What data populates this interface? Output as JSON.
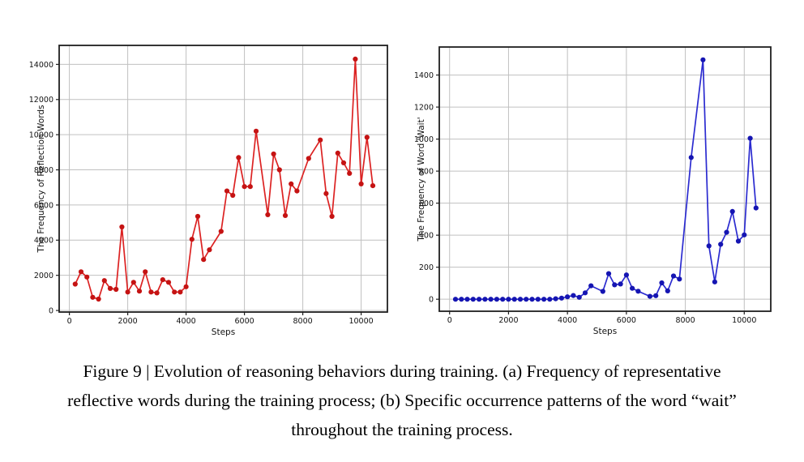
{
  "page": {
    "background": "#ffffff"
  },
  "caption": {
    "lines": [
      "Figure 9 | Evolution of reasoning behaviors during training. (a) Frequency of representative",
      "reflective words during the training process; (b) Specific occurrence patterns of the word “wait”",
      "throughout the training process."
    ]
  },
  "chart_data": [
    {
      "id": "reflection-words",
      "type": "line",
      "title": "",
      "xlabel": "Steps",
      "ylabel": "The Frequency of Reflection Words",
      "line_color": "#dc2222",
      "marker_color": "#c51313",
      "grid": true,
      "legend": null,
      "xlim": [
        -350,
        10900
      ],
      "ylim": [
        -90,
        15080
      ],
      "xticks": [
        0,
        2000,
        4000,
        6000,
        8000,
        10000
      ],
      "yticks": [
        0,
        2000,
        4000,
        6000,
        8000,
        10000,
        12000,
        14000
      ],
      "x": [
        200,
        400,
        600,
        800,
        1000,
        1200,
        1400,
        1600,
        1800,
        2000,
        2200,
        2400,
        2600,
        2800,
        3000,
        3200,
        3400,
        3600,
        3800,
        4000,
        4200,
        4400,
        4600,
        4800,
        5200,
        5400,
        5600,
        5800,
        6000,
        6200,
        6400,
        6800,
        7000,
        7200,
        7400,
        7600,
        7800,
        8200,
        8600,
        8800,
        9000,
        9200,
        9400,
        9600,
        9800,
        10000,
        10200,
        10400
      ],
      "values": [
        1500,
        2200,
        1900,
        750,
        650,
        1700,
        1250,
        1200,
        4750,
        1050,
        1600,
        1100,
        2200,
        1050,
        1000,
        1750,
        1600,
        1050,
        1050,
        1350,
        4050,
        5350,
        2900,
        3450,
        4500,
        6800,
        6550,
        8700,
        7050,
        7050,
        10200,
        5450,
        8900,
        8000,
        5400,
        7200,
        6800,
        8650,
        9700,
        6650,
        5350,
        8950,
        8400,
        7800,
        14300,
        7200,
        9850,
        7100
      ]
    },
    {
      "id": "word-wait",
      "type": "line",
      "title": "",
      "xlabel": "Steps",
      "ylabel": "The Frequency of Word 'Wait'",
      "line_color": "#2b2bd0",
      "marker_color": "#1515b2",
      "grid": true,
      "legend": null,
      "xlim": [
        -350,
        10900
      ],
      "ylim": [
        -75,
        1575
      ],
      "xticks": [
        0,
        2000,
        4000,
        6000,
        8000,
        10000
      ],
      "yticks": [
        0,
        200,
        400,
        600,
        800,
        1000,
        1200,
        1400
      ],
      "x": [
        200,
        400,
        600,
        800,
        1000,
        1200,
        1400,
        1600,
        1800,
        2000,
        2200,
        2400,
        2600,
        2800,
        3000,
        3200,
        3400,
        3600,
        3800,
        4000,
        4200,
        4400,
        4600,
        4800,
        5200,
        5400,
        5600,
        5800,
        6000,
        6200,
        6400,
        6800,
        7000,
        7200,
        7400,
        7600,
        7800,
        8200,
        8600,
        8800,
        9000,
        9200,
        9400,
        9600,
        9800,
        10000,
        10200,
        10400
      ],
      "values": [
        0,
        0,
        0,
        0,
        0,
        0,
        0,
        0,
        0,
        0,
        0,
        0,
        0,
        0,
        0,
        0,
        0,
        3,
        7,
        15,
        23,
        12,
        40,
        84,
        49,
        160,
        90,
        95,
        152,
        68,
        50,
        18,
        22,
        102,
        52,
        145,
        126,
        885,
        1495,
        333,
        108,
        343,
        418,
        548,
        363,
        402,
        1005,
        570
      ]
    }
  ],
  "style": {
    "grid_color": "#c0c0c0",
    "spine_color": "#1f1f1f",
    "tick_text_color": "#111111"
  }
}
